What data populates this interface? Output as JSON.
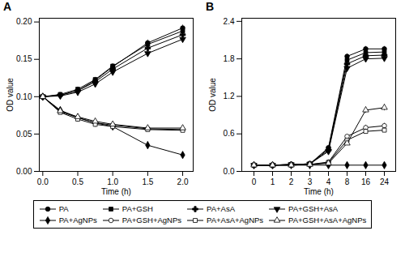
{
  "chart_data": [
    {
      "type": "line",
      "title": "A",
      "xlabel": "Time (h)",
      "ylabel": "OD value",
      "color": "black",
      "legend": "bottom",
      "x": [
        0,
        0.25,
        0.5,
        0.75,
        1.0,
        1.5,
        2.0
      ],
      "xlim": [
        -0.05,
        2.15
      ],
      "xticks": [
        {
          "value": 0.0,
          "label": "0.0"
        },
        {
          "value": 0.5,
          "label": "0.5"
        },
        {
          "value": 1.0,
          "label": "1.0"
        },
        {
          "value": 1.5,
          "label": "1.5"
        },
        {
          "value": 2.0,
          "label": "2.0"
        }
      ],
      "ylim": [
        0.0,
        0.205
      ],
      "yticks": [
        {
          "value": 0.0,
          "label": "0.00"
        },
        {
          "value": 0.05,
          "label": "0.05"
        },
        {
          "value": 0.1,
          "label": "0.10"
        },
        {
          "value": 0.15,
          "label": "0.15"
        },
        {
          "value": 0.2,
          "label": "0.20"
        }
      ],
      "series": [
        {
          "name": "PA",
          "marker": "circle",
          "values": [
            0.1,
            0.102,
            0.108,
            0.122,
            0.14,
            0.172,
            0.192
          ],
          "yerr": [
            0.003,
            0.002,
            0.003,
            0.003,
            0.004,
            0.004,
            0.004
          ]
        },
        {
          "name": "PA+GSH",
          "marker": "square",
          "values": [
            0.1,
            0.103,
            0.11,
            0.123,
            0.141,
            0.17,
            0.188
          ],
          "yerr": [
            0.003,
            0.002,
            0.003,
            0.003,
            0.003,
            0.004,
            0.004
          ]
        },
        {
          "name": "PA+AsA",
          "marker": "plus",
          "values": [
            0.1,
            0.102,
            0.108,
            0.12,
            0.137,
            0.165,
            0.183
          ],
          "yerr": [
            0.003,
            0.002,
            0.003,
            0.003,
            0.003,
            0.003,
            0.004
          ]
        },
        {
          "name": "PA+GSH+AsA",
          "marker": "triangle-down",
          "values": [
            0.1,
            0.101,
            0.106,
            0.117,
            0.133,
            0.158,
            0.177
          ],
          "yerr": [
            0.003,
            0.002,
            0.003,
            0.003,
            0.003,
            0.003,
            0.004
          ]
        },
        {
          "name": "PA+AgNPs",
          "marker": "diamond",
          "values": [
            0.1,
            0.082,
            0.072,
            0.065,
            0.06,
            0.035,
            0.022
          ],
          "yerr": [
            0.003,
            0.003,
            0.003,
            0.003,
            0.003,
            0.005,
            0.003
          ]
        },
        {
          "name": "PA+GSH+AgNPs",
          "marker": "circle-open",
          "values": [
            0.1,
            0.08,
            0.072,
            0.065,
            0.062,
            0.057,
            0.056
          ],
          "yerr": [
            0.003,
            0.003,
            0.003,
            0.003,
            0.003,
            0.003,
            0.003
          ]
        },
        {
          "name": "PA+AsA+AgNPs",
          "marker": "square-open",
          "values": [
            0.1,
            0.079,
            0.07,
            0.063,
            0.06,
            0.056,
            0.055
          ],
          "yerr": [
            0.003,
            0.003,
            0.003,
            0.003,
            0.003,
            0.003,
            0.003
          ]
        },
        {
          "name": "PA+GSH+AsA+AgNPs",
          "marker": "triangle-open",
          "values": [
            0.1,
            0.081,
            0.073,
            0.067,
            0.063,
            0.058,
            0.058
          ],
          "yerr": [
            0.003,
            0.003,
            0.003,
            0.003,
            0.003,
            0.003,
            0.003
          ]
        }
      ]
    },
    {
      "type": "line",
      "title": "B",
      "xlabel": "Time (h)",
      "ylabel": "OD value",
      "color": "black",
      "categories": [
        "0",
        "1",
        "2",
        "3",
        "4",
        "8",
        "16",
        "24"
      ],
      "ylim": [
        0.0,
        2.45
      ],
      "yticks": [
        {
          "value": 0.0,
          "label": "0.0"
        },
        {
          "value": 0.6,
          "label": "0.6"
        },
        {
          "value": 1.2,
          "label": "1.2"
        },
        {
          "value": 1.8,
          "label": "1.8"
        },
        {
          "value": 2.4,
          "label": "2.4"
        }
      ],
      "series": [
        {
          "name": "PA",
          "marker": "circle",
          "values": [
            0.1,
            0.1,
            0.11,
            0.12,
            0.38,
            1.84,
            1.96,
            1.96
          ],
          "yerr": [
            0.003,
            0.003,
            0.003,
            0.003,
            0.025,
            0.04,
            0.04,
            0.04
          ]
        },
        {
          "name": "PA+GSH",
          "marker": "square",
          "values": [
            0.1,
            0.1,
            0.11,
            0.12,
            0.36,
            1.78,
            1.9,
            1.91
          ],
          "yerr": [
            0.003,
            0.003,
            0.003,
            0.003,
            0.02,
            0.04,
            0.04,
            0.04
          ]
        },
        {
          "name": "PA+AsA",
          "marker": "plus",
          "values": [
            0.1,
            0.1,
            0.11,
            0.12,
            0.34,
            1.72,
            1.85,
            1.86
          ],
          "yerr": [
            0.003,
            0.003,
            0.003,
            0.003,
            0.02,
            0.04,
            0.04,
            0.04
          ]
        },
        {
          "name": "PA+GSH+AsA",
          "marker": "triangle-down",
          "values": [
            0.1,
            0.1,
            0.11,
            0.12,
            0.32,
            1.65,
            1.8,
            1.81
          ],
          "yerr": [
            0.003,
            0.003,
            0.003,
            0.003,
            0.02,
            0.04,
            0.04,
            0.04
          ]
        },
        {
          "name": "PA+AgNPs",
          "marker": "diamond",
          "values": [
            0.1,
            0.1,
            0.1,
            0.1,
            0.1,
            0.1,
            0.1,
            0.1
          ],
          "yerr": [
            0.003,
            0.003,
            0.003,
            0.003,
            0.003,
            0.003,
            0.003,
            0.003
          ]
        },
        {
          "name": "PA+GSH+AgNPs",
          "marker": "circle-open",
          "values": [
            0.1,
            0.1,
            0.1,
            0.11,
            0.15,
            0.56,
            0.7,
            0.73
          ],
          "yerr": [
            0.003,
            0.003,
            0.003,
            0.003,
            0.01,
            0.03,
            0.04,
            0.04
          ]
        },
        {
          "name": "PA+AsA+AgNPs",
          "marker": "square-open",
          "values": [
            0.1,
            0.1,
            0.1,
            0.11,
            0.14,
            0.5,
            0.64,
            0.66
          ],
          "yerr": [
            0.003,
            0.003,
            0.003,
            0.003,
            0.01,
            0.03,
            0.04,
            0.04
          ]
        },
        {
          "name": "PA+GSH+AsA+AgNPs",
          "marker": "triangle-open",
          "values": [
            0.1,
            0.1,
            0.1,
            0.11,
            0.13,
            0.45,
            0.98,
            1.02
          ],
          "yerr": [
            0.003,
            0.003,
            0.003,
            0.003,
            0.01,
            0.03,
            0.05,
            0.05
          ]
        }
      ]
    }
  ]
}
